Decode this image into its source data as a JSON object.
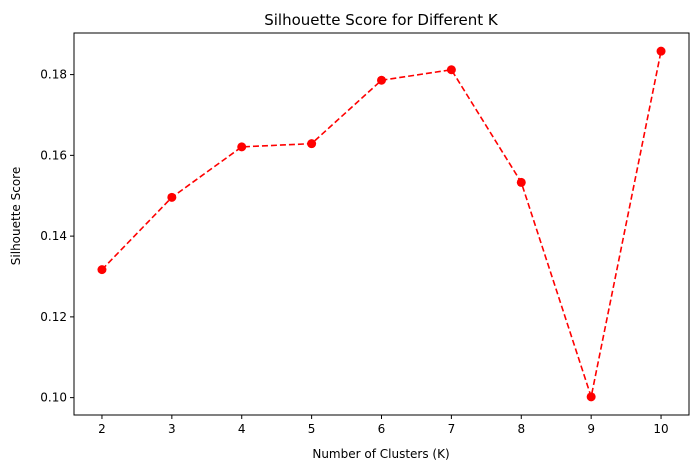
{
  "chart_data": {
    "type": "line",
    "title": "Silhouette Score for Different K",
    "xlabel": "Number of Clusters (K)",
    "ylabel": "Silhouette Score",
    "x": [
      2,
      3,
      4,
      5,
      6,
      7,
      8,
      9,
      10
    ],
    "series": [
      {
        "values": [
          0.1317,
          0.1496,
          0.1621,
          0.1629,
          0.1786,
          0.1812,
          0.1533,
          0.1002,
          0.1858
        ],
        "color": "#ff0000",
        "line_style": "dashed",
        "marker": "circle"
      }
    ],
    "xticks": [
      2,
      3,
      4,
      5,
      6,
      7,
      8,
      9,
      10
    ],
    "yticks": [
      0.1,
      0.12,
      0.14,
      0.16,
      0.18
    ],
    "ytick_labels": [
      "0.10",
      "0.12",
      "0.14",
      "0.16",
      "0.18"
    ],
    "xlim": [
      1.6,
      10.4
    ],
    "ylim": [
      0.0957,
      0.1903
    ],
    "grid": false,
    "legend": "none"
  }
}
